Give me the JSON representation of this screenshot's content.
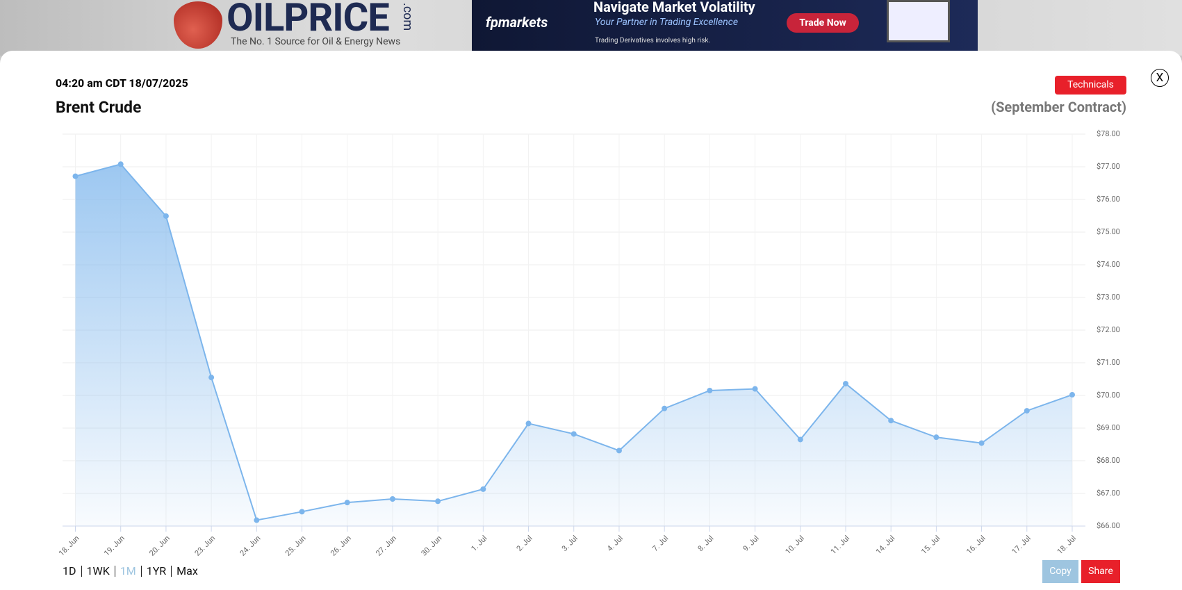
{
  "header": {
    "logo": {
      "brand": "OILPRICE",
      "domain": ".com",
      "tagline": "The No. 1 Source for Oil & Energy News"
    },
    "ad": {
      "brand": "fpmarkets",
      "headline": "Navigate Market Volatility",
      "subline": "Your Partner in Trading Excellence",
      "button": "Trade Now",
      "disclaimer": "Trading Derivatives involves high risk."
    }
  },
  "modal": {
    "timestamp": "04:20 am CDT 18/07/2025",
    "title": "Brent Crude",
    "technicals": "Technicals",
    "contract": "(September Contract)",
    "close": "X",
    "ranges": [
      "1D",
      "1WK",
      "1M",
      "1YR",
      "Max"
    ],
    "active_range": 2,
    "copy": "Copy",
    "share": "Share"
  },
  "chart_data": {
    "type": "area",
    "categories": [
      "18. Jun",
      "19. Jun",
      "20. Jun",
      "23. Jun",
      "24. Jun",
      "25. Jun",
      "26. Jun",
      "27. Jun",
      "30. Jun",
      "1. Jul",
      "2. Jul",
      "3. Jul",
      "4. Jul",
      "7. Jul",
      "8. Jul",
      "9. Jul",
      "10. Jul",
      "11. Jul",
      "14. Jul",
      "15. Jul",
      "16. Jul",
      "17. Jul",
      "18. Jul"
    ],
    "values": [
      76.71,
      77.08,
      75.49,
      70.55,
      66.18,
      66.44,
      66.72,
      66.83,
      66.76,
      67.13,
      69.14,
      68.82,
      68.31,
      69.6,
      70.15,
      70.2,
      68.65,
      70.36,
      69.23,
      68.72,
      68.54,
      69.53,
      70.02
    ],
    "color": "#7cb5ec",
    "ylim": [
      66,
      78
    ],
    "yticks": [
      {
        "value": 66,
        "label": "$66.00"
      },
      {
        "value": 67,
        "label": "$67.00"
      },
      {
        "value": 68,
        "label": "$68.00"
      },
      {
        "value": 69,
        "label": "$69.00"
      },
      {
        "value": 70,
        "label": "$70.00"
      },
      {
        "value": 71,
        "label": "$71.00"
      },
      {
        "value": 72,
        "label": "$72.00"
      },
      {
        "value": 73,
        "label": "$73.00"
      },
      {
        "value": 74,
        "label": "$74.00"
      },
      {
        "value": 75,
        "label": "$75.00"
      },
      {
        "value": 76,
        "label": "$76.00"
      },
      {
        "value": 77,
        "label": "$77.00"
      },
      {
        "value": 78,
        "label": "$78.00"
      }
    ],
    "grid": true
  }
}
